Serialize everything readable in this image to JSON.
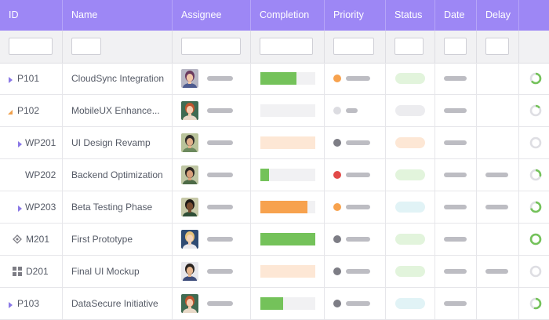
{
  "columns": [
    "ID",
    "Name",
    "Assignee",
    "Completion",
    "Priority",
    "Status",
    "Date",
    "Delay"
  ],
  "colors": {
    "header_bg": "#9d87f5",
    "filter_bg": "#f1f1f3",
    "completion_green": "#74c25a",
    "completion_orange": "#f7a24e",
    "completion_peach": "#fde7d5",
    "track_gray": "#f1f1f3",
    "priority_orange": "#f7a24e",
    "priority_red": "#e24a48",
    "priority_dark": "#7d7d85",
    "priority_light": "#dcdce1",
    "status_green": "#e2f4dc",
    "status_gray": "#ececef",
    "status_peach": "#fde7d5",
    "status_blue": "#e1f3f6",
    "ring_green": "#74c25a",
    "ring_gray": "#dedee3"
  },
  "rows": [
    {
      "id": "P101",
      "name": "CloudSync Integration",
      "icon": "expand-right",
      "avatar": "woman-purple-hair",
      "completion": 0.65,
      "completion_color": "#74c25a",
      "priority_color": "#f7a24e",
      "priority_level": "medium",
      "status_color": "#e2f4dc",
      "has_delay": false,
      "progress_ring": 0.65
    },
    {
      "id": "P102",
      "name": "MobileUX Enhance...",
      "icon": "expand-down",
      "avatar": "woman-red-hair",
      "completion": 0,
      "completion_color": "#f1f1f3",
      "priority_color": "#dcdce1",
      "priority_level": "low",
      "status_color": "#ececef",
      "has_delay": false,
      "progress_ring": 0.15
    },
    {
      "id": "WP201",
      "name": "UI Design Revamp",
      "icon": "expand-right",
      "avatar": "man-dark-hair",
      "completion": 0,
      "completion_color": "#fde7d5",
      "priority_color": "#7d7d85",
      "priority_level": "normal",
      "status_color": "#fde7d5",
      "has_delay": false,
      "progress_ring": 0
    },
    {
      "id": "WP202",
      "name": "Backend Optimization",
      "icon": "none",
      "avatar": "man-beard",
      "completion": 0.15,
      "completion_color": "#74c25a",
      "priority_color": "#e24a48",
      "priority_level": "high",
      "status_color": "#e2f4dc",
      "has_delay": true,
      "progress_ring": 0.3
    },
    {
      "id": "WP203",
      "name": "Beta Testing Phase",
      "icon": "expand-right",
      "avatar": "man-dark-skin",
      "completion": 0.85,
      "completion_color": "#f7a24e",
      "priority_color": "#f7a24e",
      "priority_level": "medium",
      "status_color": "#e1f3f6",
      "has_delay": true,
      "progress_ring": 0.7
    },
    {
      "id": "M201",
      "name": "First Prototype",
      "icon": "milestone",
      "avatar": "woman-blonde",
      "completion": 1,
      "completion_color": "#74c25a",
      "priority_color": "#7d7d85",
      "priority_level": "normal",
      "status_color": "#e2f4dc",
      "has_delay": false,
      "progress_ring": 1
    },
    {
      "id": "D201",
      "name": "Final UI Mockup",
      "icon": "deliverable",
      "avatar": "man-short-hair",
      "completion": 1,
      "completion_color": "#fde7d5",
      "priority_color": "#7d7d85",
      "priority_level": "normal",
      "status_color": "#e2f4dc",
      "has_delay": true,
      "progress_ring": 0
    },
    {
      "id": "P103",
      "name": "DataSecure Initiative",
      "icon": "expand-right",
      "avatar": "woman-red-hair",
      "completion": 0.42,
      "completion_color": "#74c25a",
      "priority_color": "#7d7d85",
      "priority_level": "normal",
      "status_color": "#e1f3f6",
      "has_delay": false,
      "progress_ring": 0.55
    }
  ]
}
